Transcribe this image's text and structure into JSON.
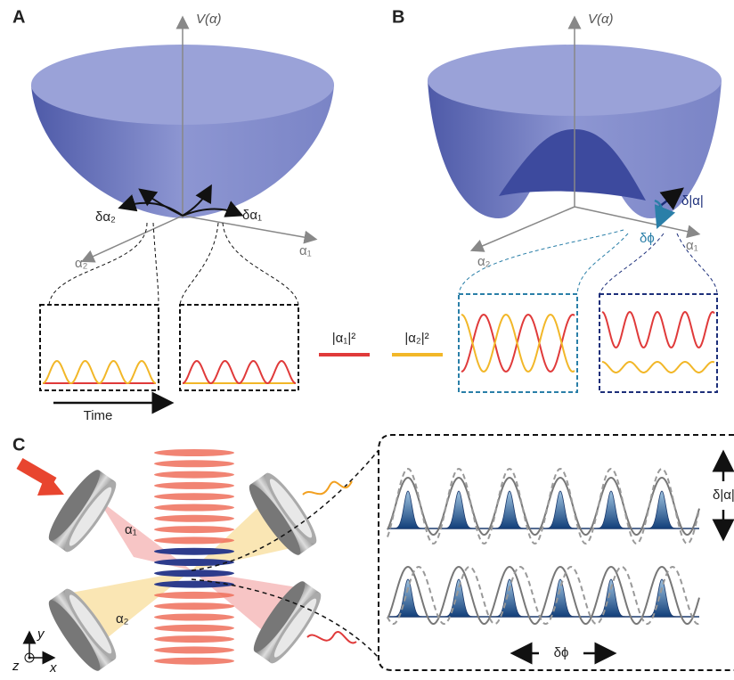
{
  "panels": {
    "a": {
      "label": "A",
      "axis_v": "V(α)",
      "delta_2": "δα₂",
      "delta_1": "δα₁",
      "axis_2": "α₂",
      "axis_1": "α₁",
      "time": "Time"
    },
    "b": {
      "label": "B",
      "axis_v": "V(α)",
      "delta_amp": "δ|α|",
      "delta_phase": "δϕ",
      "axis_2": "α₂",
      "axis_1": "α₁"
    },
    "legend": {
      "red": "|α₁|²",
      "yellow": "|α₂|²"
    },
    "c": {
      "label": "C",
      "mode_1": "α₁",
      "mode_2": "α₂",
      "axis_y": "y",
      "axis_z": "z",
      "axis_x": "x",
      "amp": "δ|α|",
      "phase": "δϕ"
    }
  }
}
